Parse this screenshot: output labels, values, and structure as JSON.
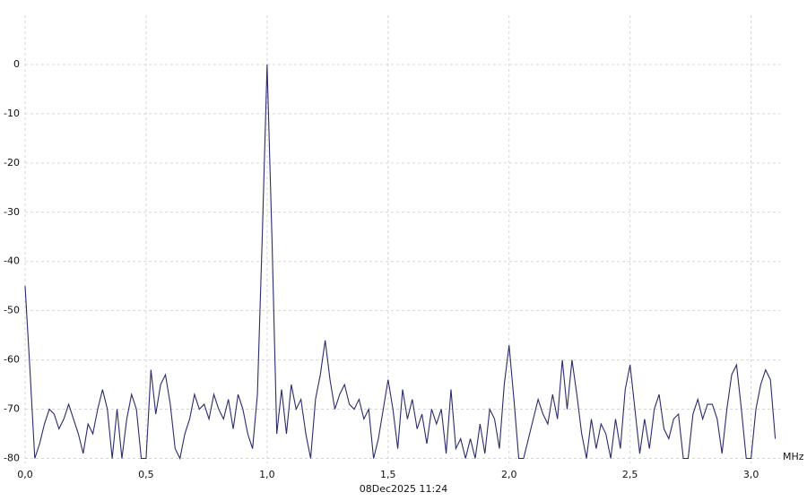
{
  "chart_data": {
    "type": "line",
    "x_unit_label": "MHz",
    "timestamp": "08Dec2025 11:24",
    "x": [
      0,
      0.02,
      0.04,
      0.06,
      0.08,
      0.1,
      0.12,
      0.14,
      0.16,
      0.18,
      0.2,
      0.22,
      0.24,
      0.26,
      0.28,
      0.3,
      0.32,
      0.34,
      0.36,
      0.38,
      0.4,
      0.42,
      0.44,
      0.46,
      0.48,
      0.5,
      0.52,
      0.54,
      0.56,
      0.58,
      0.6,
      0.62,
      0.64,
      0.66,
      0.68,
      0.7,
      0.72,
      0.74,
      0.76,
      0.78,
      0.8,
      0.82,
      0.84,
      0.86,
      0.88,
      0.9,
      0.92,
      0.94,
      0.96,
      0.98,
      1,
      1.02,
      1.04,
      1.06,
      1.08,
      1.1,
      1.12,
      1.14,
      1.16,
      1.18,
      1.2,
      1.22,
      1.24,
      1.26,
      1.28,
      1.3,
      1.32,
      1.34,
      1.36,
      1.38,
      1.4,
      1.42,
      1.44,
      1.46,
      1.48,
      1.5,
      1.52,
      1.54,
      1.56,
      1.58,
      1.6,
      1.62,
      1.64,
      1.66,
      1.68,
      1.7,
      1.72,
      1.74,
      1.76,
      1.78,
      1.8,
      1.82,
      1.84,
      1.86,
      1.88,
      1.9,
      1.92,
      1.94,
      1.96,
      1.98,
      2,
      2.02,
      2.04,
      2.06,
      2.08,
      2.1,
      2.12,
      2.14,
      2.16,
      2.18,
      2.2,
      2.22,
      2.24,
      2.26,
      2.28,
      2.3,
      2.32,
      2.34,
      2.36,
      2.38,
      2.4,
      2.42,
      2.44,
      2.46,
      2.48,
      2.5,
      2.52,
      2.54,
      2.56,
      2.58,
      2.6,
      2.62,
      2.64,
      2.66,
      2.68,
      2.7,
      2.72,
      2.74,
      2.76,
      2.78,
      2.8,
      2.82,
      2.84,
      2.86,
      2.88,
      2.9,
      2.92,
      2.94,
      2.96,
      2.98,
      3,
      3.02,
      3.04,
      3.06,
      3.08,
      3.1
    ],
    "series": [
      {
        "color": "#2b2b6e",
        "values": [
          -45,
          -62,
          -80,
          -77,
          -73,
          -70,
          -71,
          -74,
          -72,
          -69,
          -72,
          -75,
          -79,
          -73,
          -75,
          -70,
          -66,
          -70,
          -80,
          -70,
          -80,
          -72,
          -67,
          -70,
          -80,
          -80,
          -62,
          -71,
          -65,
          -63,
          -69,
          -78,
          -80,
          -75,
          -72,
          -67,
          -70,
          -69,
          -72,
          -67,
          -70,
          -72,
          -68,
          -74,
          -67,
          -70,
          -75,
          -78,
          -67,
          -35,
          0,
          -35,
          -75,
          -66,
          -75,
          -65,
          -70,
          -68,
          -75,
          -80,
          -68,
          -63,
          -56,
          -64,
          -70,
          -67,
          -65,
          -69,
          -70,
          -68,
          -72,
          -70,
          -80,
          -76,
          -70,
          -64,
          -70,
          -78,
          -66,
          -72,
          -68,
          -74,
          -71,
          -77,
          -70,
          -73,
          -70,
          -79,
          -66,
          -78,
          -76,
          -80,
          -76,
          -80,
          -73,
          -79,
          -70,
          -72,
          -78,
          -65,
          -57,
          -68,
          -80,
          -80,
          -76,
          -72,
          -68,
          -71,
          -73,
          -67,
          -72,
          -60,
          -70,
          -60,
          -67,
          -75,
          -80,
          -72,
          -78,
          -73,
          -75,
          -80,
          -72,
          -78,
          -66,
          -61,
          -70,
          -79,
          -72,
          -78,
          -70,
          -67,
          -74,
          -76,
          -72,
          -71,
          -80,
          -80,
          -71,
          -68,
          -72,
          -69,
          -69,
          -72,
          -79,
          -70,
          -63,
          -61,
          -70,
          -80,
          -80,
          -70,
          -65,
          -62,
          -64,
          -76
        ]
      }
    ],
    "xlim": [
      0,
      3.12
    ],
    "xticks": [
      {
        "value": 0,
        "label": "0,0"
      },
      {
        "value": 0.5,
        "label": "0,5"
      },
      {
        "value": 1,
        "label": "1,0"
      },
      {
        "value": 1.5,
        "label": "1,5"
      },
      {
        "value": 2,
        "label": "2,0"
      },
      {
        "value": 2.5,
        "label": "2,5"
      },
      {
        "value": 3,
        "label": "3,0"
      }
    ],
    "ylim": [
      -81,
      10
    ],
    "yticks": [
      0,
      -10,
      -20,
      -30,
      -40,
      -50,
      -60,
      -70,
      -80
    ],
    "grid": true
  }
}
